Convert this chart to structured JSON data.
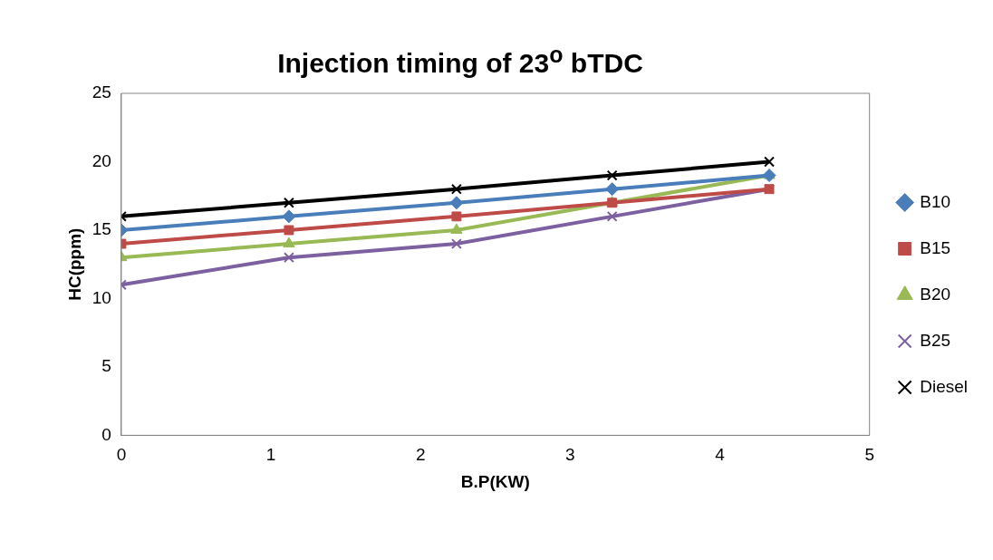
{
  "chart_data": {
    "type": "line",
    "title": "Injection timing of 23$^{o}$ bTDC",
    "xlabel": "B.P(KW)",
    "ylabel": "HC(ppm)",
    "x": [
      0,
      1.12,
      2.24,
      3.28,
      4.33
    ],
    "series": [
      {
        "name": "B10",
        "color": "#4a7ebb",
        "marker": "diamond",
        "values": [
          15,
          16,
          17,
          18,
          19
        ]
      },
      {
        "name": "B15",
        "color": "#be4b48",
        "marker": "square",
        "values": [
          14,
          15,
          16,
          17,
          18
        ]
      },
      {
        "name": "B20",
        "color": "#98b954",
        "marker": "triangle",
        "values": [
          13,
          14,
          15,
          17,
          19
        ]
      },
      {
        "name": "B25",
        "color": "#7d60a0",
        "marker": "cross",
        "values": [
          11,
          13,
          14,
          16,
          18
        ]
      },
      {
        "name": "Diesel",
        "color": "#000000",
        "marker": "cross",
        "values": [
          16,
          17,
          18,
          19,
          20
        ]
      }
    ],
    "xlim": [
      0,
      5
    ],
    "xticks": [
      0,
      1,
      2,
      3,
      4,
      5
    ],
    "ylim": [
      0,
      25
    ],
    "yticks": [
      0,
      5,
      10,
      15,
      20,
      25
    ],
    "grid": false,
    "legend": "right",
    "line_style": "solid"
  }
}
